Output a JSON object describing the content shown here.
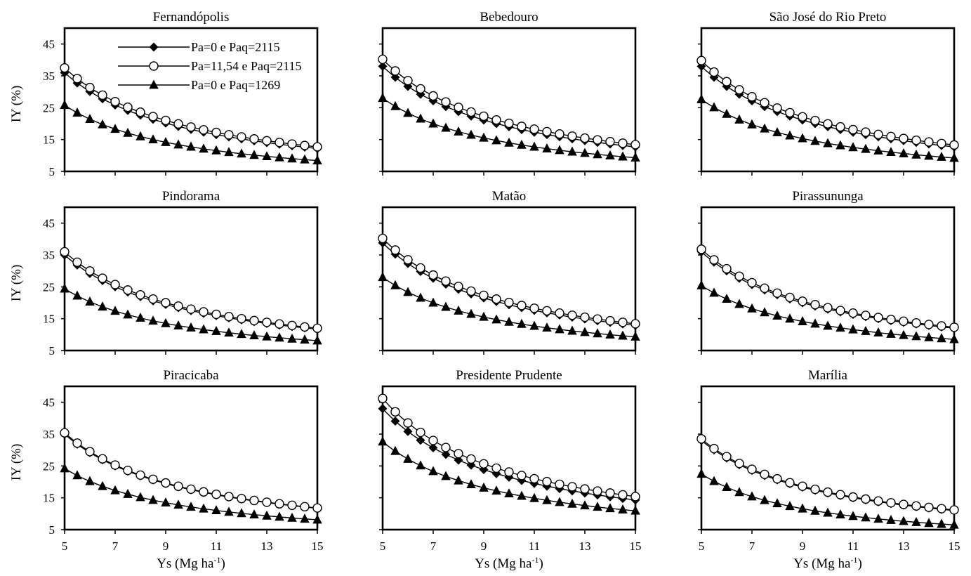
{
  "figure": {
    "y_label": "IY (%)",
    "x_label": "Ys (Mg ha",
    "x_label_sup": "-1",
    "x_label_close": ")"
  },
  "legend": [
    {
      "label": "Pa=0 e Paq=2115",
      "marker": "diamond-filled"
    },
    {
      "label": "Pa=11,54 e Paq=2115",
      "marker": "circle-open"
    },
    {
      "label": "Pa=0 e Paq=1269",
      "marker": "triangle-filled"
    }
  ],
  "chart_data": [
    {
      "type": "line",
      "title": "Fernandópolis",
      "x": [
        5,
        5.5,
        6,
        6.5,
        7,
        7.5,
        8,
        8.5,
        9,
        9.5,
        10,
        10.5,
        11,
        11.5,
        12,
        12.5,
        13,
        13.5,
        14,
        14.5,
        15
      ],
      "xlim": [
        5,
        15
      ],
      "ylim": [
        5,
        50
      ],
      "xticks": [
        5,
        7,
        9,
        11,
        13,
        15
      ],
      "yticks": [
        5,
        15,
        25,
        35,
        45
      ],
      "series": [
        {
          "name": "Pa=0 e Paq=2115",
          "end_values": [
            36,
            12.2
          ]
        },
        {
          "name": "Pa=11,54 e Paq=2115",
          "end_values": [
            37.5,
            12.7
          ]
        },
        {
          "name": "Pa=0 e Paq=1269",
          "end_values": [
            25.8,
            8.4
          ]
        }
      ]
    },
    {
      "type": "line",
      "title": "Bebedouro",
      "x": [
        5,
        5.5,
        6,
        6.5,
        7,
        7.5,
        8,
        8.5,
        9,
        9.5,
        10,
        10.5,
        11,
        11.5,
        12,
        12.5,
        13,
        13.5,
        14,
        14.5,
        15
      ],
      "xlim": [
        5,
        15
      ],
      "ylim": [
        5,
        50
      ],
      "xticks": [
        5,
        7,
        9,
        11,
        13,
        15
      ],
      "yticks": [
        5,
        15,
        25,
        35,
        45
      ],
      "series": [
        {
          "name": "Pa=0 e Paq=2115",
          "end_values": [
            38,
            12.7
          ]
        },
        {
          "name": "Pa=11,54 e Paq=2115",
          "end_values": [
            40.2,
            13.4
          ]
        },
        {
          "name": "Pa=0 e Paq=1269",
          "end_values": [
            28,
            9.3
          ]
        }
      ]
    },
    {
      "type": "line",
      "title": "São José do Rio Preto",
      "x": [
        5,
        5.5,
        6,
        6.5,
        7,
        7.5,
        8,
        8.5,
        9,
        9.5,
        10,
        10.5,
        11,
        11.5,
        12,
        12.5,
        13,
        13.5,
        14,
        14.5,
        15
      ],
      "xlim": [
        5,
        15
      ],
      "ylim": [
        5,
        50
      ],
      "xticks": [
        5,
        7,
        9,
        11,
        13,
        15
      ],
      "yticks": [
        5,
        15,
        25,
        35,
        45
      ],
      "series": [
        {
          "name": "Pa=0 e Paq=2115",
          "end_values": [
            38,
            12.7
          ]
        },
        {
          "name": "Pa=11,54 e Paq=2115",
          "end_values": [
            39.8,
            13.3
          ]
        },
        {
          "name": "Pa=0 e Paq=1269",
          "end_values": [
            27.6,
            9.2
          ]
        }
      ]
    },
    {
      "type": "line",
      "title": "Pindorama",
      "x": [
        5,
        5.5,
        6,
        6.5,
        7,
        7.5,
        8,
        8.5,
        9,
        9.5,
        10,
        10.5,
        11,
        11.5,
        12,
        12.5,
        13,
        13.5,
        14,
        14.5,
        15
      ],
      "xlim": [
        5,
        15
      ],
      "ylim": [
        5,
        50
      ],
      "xticks": [
        5,
        7,
        9,
        11,
        13,
        15
      ],
      "yticks": [
        5,
        15,
        25,
        35,
        45
      ],
      "series": [
        {
          "name": "Pa=0 e Paq=2115",
          "end_values": [
            35,
            11.7
          ]
        },
        {
          "name": "Pa=11,54 e Paq=2115",
          "end_values": [
            36,
            12
          ]
        },
        {
          "name": "Pa=0 e Paq=1269",
          "end_values": [
            24.4,
            8.1
          ]
        }
      ]
    },
    {
      "type": "line",
      "title": "Matão",
      "x": [
        5,
        5.5,
        6,
        6.5,
        7,
        7.5,
        8,
        8.5,
        9,
        9.5,
        10,
        10.5,
        11,
        11.5,
        12,
        12.5,
        13,
        13.5,
        14,
        14.5,
        15
      ],
      "xlim": [
        5,
        15
      ],
      "ylim": [
        5,
        50
      ],
      "xticks": [
        5,
        7,
        9,
        11,
        13,
        15
      ],
      "yticks": [
        5,
        15,
        25,
        35,
        45
      ],
      "series": [
        {
          "name": "Pa=0 e Paq=2115",
          "end_values": [
            38.8,
            12.9
          ]
        },
        {
          "name": "Pa=11,54 e Paq=2115",
          "end_values": [
            40.2,
            13.4
          ]
        },
        {
          "name": "Pa=0 e Paq=1269",
          "end_values": [
            28,
            9.3
          ]
        }
      ]
    },
    {
      "type": "line",
      "title": "Pirassununga",
      "x": [
        5,
        5.5,
        6,
        6.5,
        7,
        7.5,
        8,
        8.5,
        9,
        9.5,
        10,
        10.5,
        11,
        11.5,
        12,
        12.5,
        13,
        13.5,
        14,
        14.5,
        15
      ],
      "xlim": [
        5,
        15
      ],
      "ylim": [
        5,
        50
      ],
      "xticks": [
        5,
        7,
        9,
        11,
        13,
        15
      ],
      "yticks": [
        5,
        15,
        25,
        35,
        45
      ],
      "series": [
        {
          "name": "Pa=0 e Paq=2115",
          "end_values": [
            36,
            12
          ]
        },
        {
          "name": "Pa=11,54 e Paq=2115",
          "end_values": [
            36.8,
            12.3
          ]
        },
        {
          "name": "Pa=0 e Paq=1269",
          "end_values": [
            25.4,
            8.5
          ]
        }
      ]
    },
    {
      "type": "line",
      "title": "Piracicaba",
      "x": [
        5,
        5.5,
        6,
        6.5,
        7,
        7.5,
        8,
        8.5,
        9,
        9.5,
        10,
        10.5,
        11,
        11.5,
        12,
        12.5,
        13,
        13.5,
        14,
        14.5,
        15
      ],
      "xlim": [
        5,
        15
      ],
      "ylim": [
        5,
        50
      ],
      "xticks": [
        5,
        7,
        9,
        11,
        13,
        15
      ],
      "yticks": [
        5,
        15,
        25,
        35,
        45
      ],
      "series": [
        {
          "name": "Pa=0 e Paq=2115",
          "end_values": [
            35,
            11.7
          ]
        },
        {
          "name": "Pa=11,54 e Paq=2115",
          "end_values": [
            35.4,
            11.8
          ]
        },
        {
          "name": "Pa=0 e Paq=1269",
          "end_values": [
            24.2,
            8.1
          ]
        }
      ]
    },
    {
      "type": "line",
      "title": "Presidente Prudente",
      "x": [
        5,
        5.5,
        6,
        6.5,
        7,
        7.5,
        8,
        8.5,
        9,
        9.5,
        10,
        10.5,
        11,
        11.5,
        12,
        12.5,
        13,
        13.5,
        14,
        14.5,
        15
      ],
      "xlim": [
        5,
        15
      ],
      "ylim": [
        5,
        50
      ],
      "xticks": [
        5,
        7,
        9,
        11,
        13,
        15
      ],
      "yticks": [
        5,
        15,
        25,
        35,
        45
      ],
      "series": [
        {
          "name": "Pa=0 e Paq=2115",
          "end_values": [
            43,
            14.3
          ]
        },
        {
          "name": "Pa=11,54 e Paq=2115",
          "end_values": [
            46.2,
            15.4
          ]
        },
        {
          "name": "Pa=0 e Paq=1269",
          "end_values": [
            32.6,
            10.9
          ]
        }
      ]
    },
    {
      "type": "line",
      "title": "Marília",
      "x": [
        5,
        5.5,
        6,
        6.5,
        7,
        7.5,
        8,
        8.5,
        9,
        9.5,
        10,
        10.5,
        11,
        11.5,
        12,
        12.5,
        13,
        13.5,
        14,
        14.5,
        15
      ],
      "xlim": [
        5,
        15
      ],
      "ylim": [
        5,
        50
      ],
      "xticks": [
        5,
        7,
        9,
        11,
        13,
        15
      ],
      "yticks": [
        5,
        15,
        25,
        35,
        45
      ],
      "series": [
        {
          "name": "Pa=0 e Paq=2115",
          "end_values": [
            33,
            11
          ]
        },
        {
          "name": "Pa=11,54 e Paq=2115",
          "end_values": [
            33.5,
            11.2
          ]
        },
        {
          "name": "Pa=0 e Paq=1269",
          "end_values": [
            22.5,
            6.5
          ]
        }
      ]
    }
  ]
}
